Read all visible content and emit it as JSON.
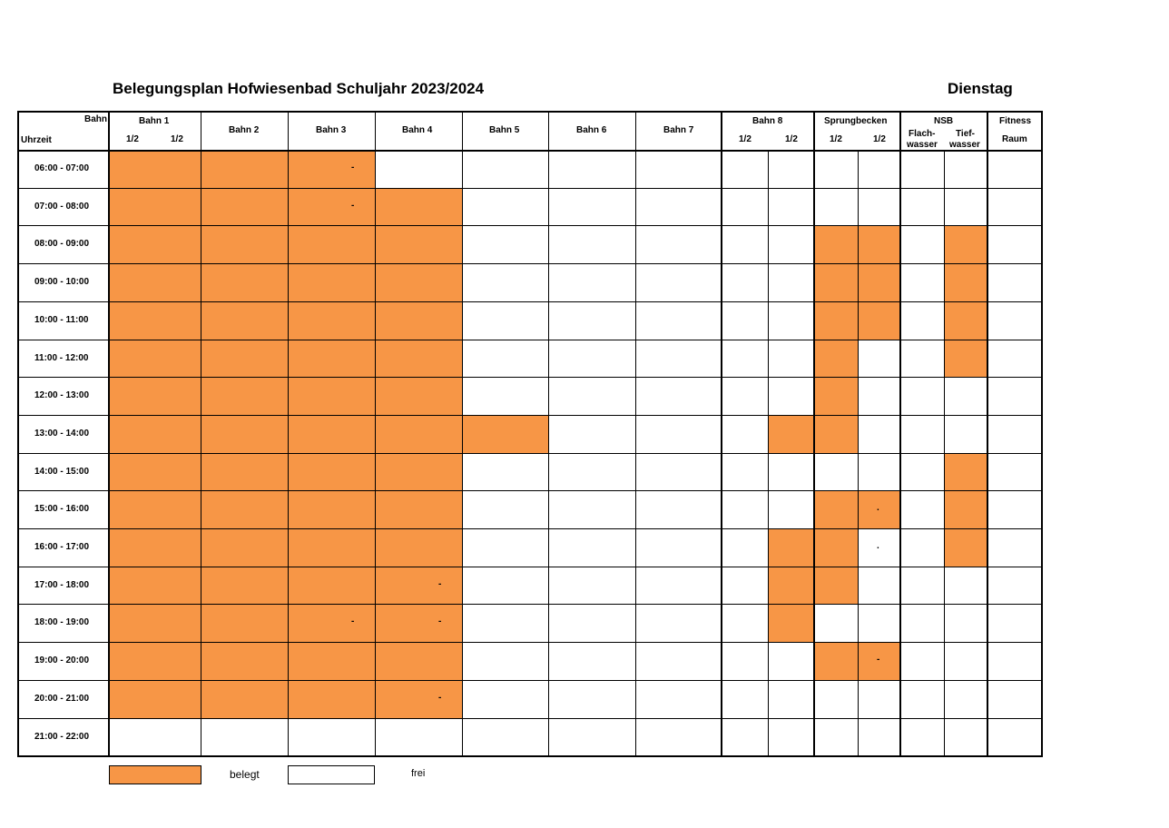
{
  "title": "Belegungsplan Hofwiesenbad Schuljahr 2023/2024",
  "day": "Dienstag",
  "header": {
    "bahn_corner": "Bahn",
    "uhrzeit_corner": "Uhrzeit",
    "bahn1": "Bahn 1",
    "bahn2": "Bahn 2",
    "bahn3": "Bahn 3",
    "bahn4": "Bahn 4",
    "bahn5": "Bahn 5",
    "bahn6": "Bahn 6",
    "bahn7": "Bahn 7",
    "bahn8": "Bahn 8",
    "sprung": "Sprungbecken",
    "nsb": "NSB",
    "fitness_line1": "Fitness",
    "fitness_line2": "Raum",
    "half": "1/2",
    "flach_line1": "Flach-",
    "flach_line2": "wasser",
    "tief_line1": "Tief-",
    "tief_line2": "wasser"
  },
  "times": [
    "06:00 - 07:00",
    "07:00 - 08:00",
    "08:00 - 09:00",
    "09:00 - 10:00",
    "10:00 - 11:00",
    "11:00 - 12:00",
    "12:00 - 13:00",
    "13:00 - 14:00",
    "14:00 - 15:00",
    "15:00 - 16:00",
    "16:00 - 17:00",
    "17:00 - 18:00",
    "18:00 - 19:00",
    "19:00 - 20:00",
    "20:00 - 21:00",
    "21:00 - 22:00"
  ],
  "columns": [
    "Bahn 1",
    "Bahn 2",
    "Bahn 3",
    "Bahn 4",
    "Bahn 5",
    "Bahn 6",
    "Bahn 7",
    "Bahn 8 1/2",
    "Bahn 8 1/2",
    "Sprungbecken 1/2",
    "Sprungbecken 1/2",
    "NSB Flachwasser",
    "NSB Tiefwasser",
    "Fitness Raum"
  ],
  "occupied": [
    [
      1,
      1,
      1,
      0,
      0,
      0,
      0,
      0,
      0,
      0,
      0,
      0,
      0,
      0
    ],
    [
      1,
      1,
      1,
      1,
      0,
      0,
      0,
      0,
      0,
      0,
      0,
      0,
      0,
      0
    ],
    [
      1,
      1,
      1,
      1,
      0,
      0,
      0,
      0,
      0,
      1,
      1,
      0,
      1,
      0
    ],
    [
      1,
      1,
      1,
      1,
      0,
      0,
      0,
      0,
      0,
      1,
      1,
      0,
      1,
      0
    ],
    [
      1,
      1,
      1,
      1,
      0,
      0,
      0,
      0,
      0,
      1,
      1,
      0,
      1,
      0
    ],
    [
      1,
      1,
      1,
      1,
      0,
      0,
      0,
      0,
      0,
      1,
      0,
      0,
      1,
      0
    ],
    [
      1,
      1,
      1,
      1,
      0,
      0,
      0,
      0,
      0,
      1,
      0,
      0,
      0,
      0
    ],
    [
      1,
      1,
      1,
      1,
      1,
      0,
      0,
      0,
      1,
      1,
      0,
      0,
      0,
      0
    ],
    [
      1,
      1,
      1,
      1,
      0,
      0,
      0,
      0,
      0,
      0,
      0,
      0,
      1,
      0
    ],
    [
      1,
      1,
      1,
      1,
      0,
      0,
      0,
      0,
      0,
      1,
      1,
      0,
      1,
      0
    ],
    [
      1,
      1,
      1,
      1,
      0,
      0,
      0,
      0,
      1,
      1,
      0,
      0,
      1,
      0
    ],
    [
      1,
      1,
      1,
      1,
      0,
      0,
      0,
      0,
      1,
      1,
      0,
      0,
      0,
      0
    ],
    [
      1,
      1,
      1,
      1,
      0,
      0,
      0,
      0,
      1,
      0,
      0,
      0,
      0,
      0
    ],
    [
      1,
      1,
      1,
      1,
      0,
      0,
      0,
      0,
      0,
      1,
      1,
      0,
      0,
      0
    ],
    [
      1,
      1,
      1,
      1,
      0,
      0,
      0,
      0,
      0,
      0,
      0,
      0,
      0,
      0
    ],
    [
      0,
      0,
      0,
      0,
      0,
      0,
      0,
      0,
      0,
      0,
      0,
      0,
      0,
      0
    ]
  ],
  "marks": [
    {
      "row": 0,
      "col": 2,
      "text": "-"
    },
    {
      "row": 1,
      "col": 2,
      "text": "-"
    },
    {
      "row": 9,
      "col": 10,
      "text": "."
    },
    {
      "row": 10,
      "col": 10,
      "text": "."
    },
    {
      "row": 11,
      "col": 3,
      "text": "-"
    },
    {
      "row": 12,
      "col": 2,
      "text": "-"
    },
    {
      "row": 12,
      "col": 3,
      "text": "-"
    },
    {
      "row": 13,
      "col": 10,
      "text": "-"
    },
    {
      "row": 14,
      "col": 3,
      "text": "-"
    }
  ],
  "legend": {
    "occupied_label": "belegt",
    "free_label": "frei",
    "occupied_color": "#f79646",
    "free_color": "#ffffff"
  }
}
